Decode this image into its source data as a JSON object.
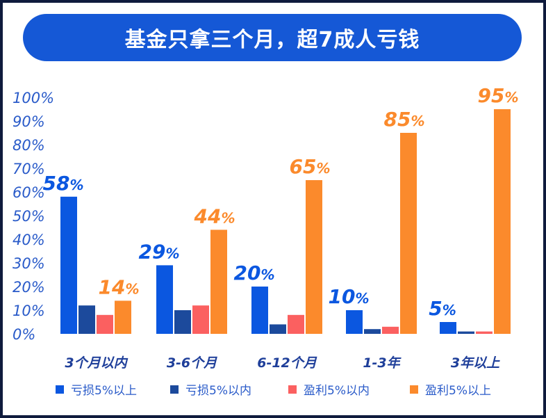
{
  "title": "基金只拿三个月，超7成人亏钱",
  "chart_data": {
    "type": "bar",
    "title": "基金只拿三个月，超7成人亏钱",
    "categories": [
      "3个月以内",
      "3-6个月",
      "6-12个月",
      "1-3年",
      "3年以上"
    ],
    "yticks": [
      "0%",
      "10%",
      "20%",
      "30%",
      "40%",
      "50%",
      "60%",
      "70%",
      "80%",
      "90%",
      "100%"
    ],
    "ylim": [
      0,
      100
    ],
    "grid": false,
    "legend_position": "bottom",
    "series": [
      {
        "name": "亏损5%以上",
        "color": "#0b57e0",
        "values": [
          58,
          29,
          20,
          10,
          5
        ],
        "labels": [
          "58",
          "29",
          "20",
          "10",
          "5"
        ]
      },
      {
        "name": "亏损5%以内",
        "color": "#1c4a9c",
        "values": [
          12,
          10,
          4,
          2,
          1
        ],
        "labels": null
      },
      {
        "name": "盈利5%以内",
        "color": "#fb6060",
        "values": [
          8,
          12,
          8,
          3,
          1
        ],
        "labels": null
      },
      {
        "name": "盈利5%以上",
        "color": "#fb8a2c",
        "values": [
          14,
          44,
          65,
          85,
          95
        ],
        "labels": [
          "14",
          "44",
          "65",
          "85",
          "95"
        ]
      }
    ],
    "label_suffix": "%"
  }
}
